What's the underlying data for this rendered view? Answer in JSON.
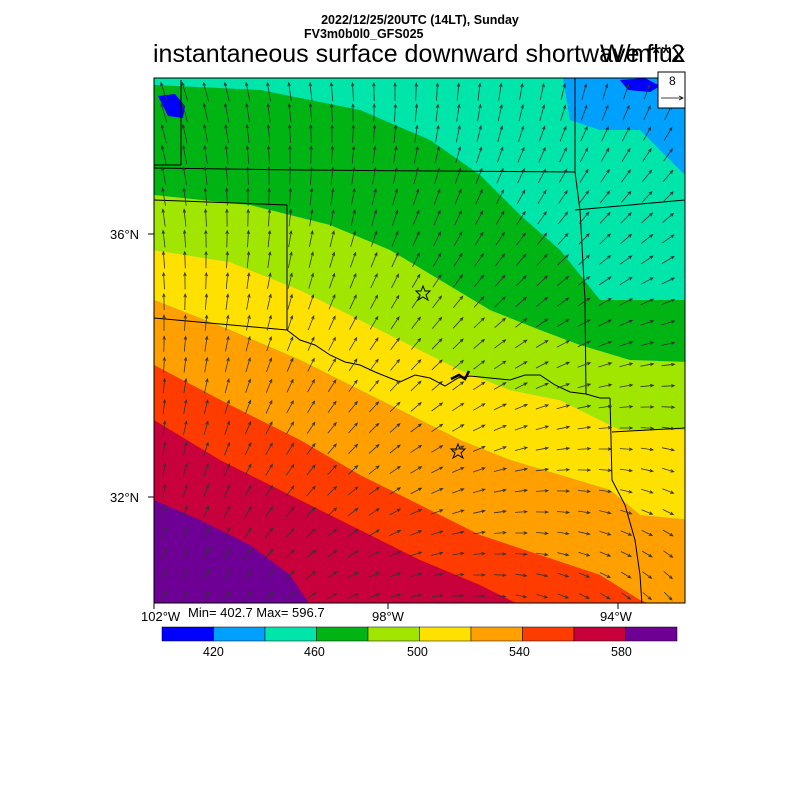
{
  "header": {
    "datetime": "2022/12/25/20UTC (14LT), Sunday",
    "model": "FV3m0b0l0_GFS025",
    "title": "instantaneous surface downward shortwave flux",
    "units": "W/m**2"
  },
  "axes": {
    "lat_labels": [
      "36°N",
      "32°N"
    ],
    "lon_labels": [
      "102°W",
      "98°W",
      "94°W"
    ]
  },
  "stats": "Min= 402.7 Max= 596.7",
  "reference_vector": {
    "label": "8"
  },
  "colorbar": {
    "labels": [
      "420",
      "460",
      "500",
      "540",
      "580"
    ],
    "colors": [
      "#0000ff",
      "#00a0ff",
      "#00e6aa",
      "#00b414",
      "#a0e600",
      "#ffe100",
      "#ffa000",
      "#ff3c00",
      "#c8003c",
      "#6e0096"
    ]
  },
  "map": {
    "border_color": "#000000",
    "vector_color": "#333333"
  }
}
